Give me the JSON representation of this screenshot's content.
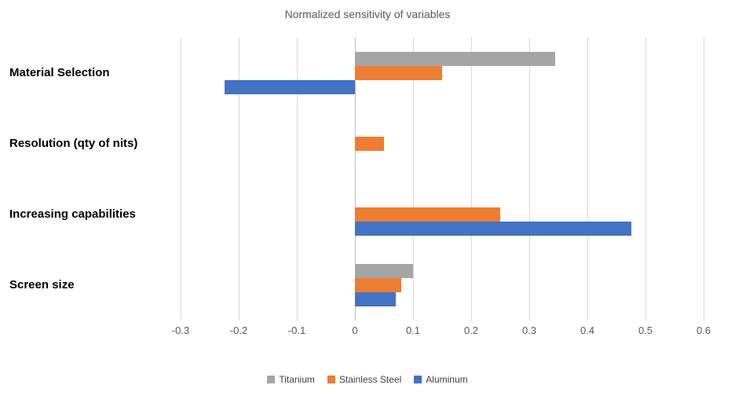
{
  "chart_data": {
    "type": "bar",
    "orientation": "horizontal",
    "title": "Normalized sensitivity of variables",
    "categories": [
      "Material Selection",
      "Resolution (qty of nits)",
      "Increasing capabilities",
      "Screen size"
    ],
    "series": [
      {
        "name": "Titanium",
        "color": "#a5a5a5",
        "values": [
          0.345,
          0,
          0,
          0.1
        ]
      },
      {
        "name": "Stainless Steel",
        "color": "#ed7d31",
        "values": [
          0.15,
          0.05,
          0.25,
          0.08
        ]
      },
      {
        "name": "Aluminum",
        "color": "#4472c4",
        "values": [
          -0.225,
          0,
          0.475,
          0.07
        ]
      }
    ],
    "xlim": [
      -0.3,
      0.6
    ],
    "x_ticks": [
      -0.3,
      -0.2,
      -0.1,
      0,
      0.1,
      0.2,
      0.3,
      0.4,
      0.5,
      0.6
    ],
    "x_tick_labels": [
      "-0.3",
      "-0.2",
      "-0.1",
      "0",
      "0.1",
      "0.2",
      "0.3",
      "0.4",
      "0.5",
      "0.6"
    ],
    "grid": true,
    "legend_position": "bottom",
    "colors": {
      "title": "#595959",
      "tick_label": "#595959",
      "gridline": "#d9d9d9",
      "category_label": "#000000",
      "background": "#ffffff"
    }
  }
}
